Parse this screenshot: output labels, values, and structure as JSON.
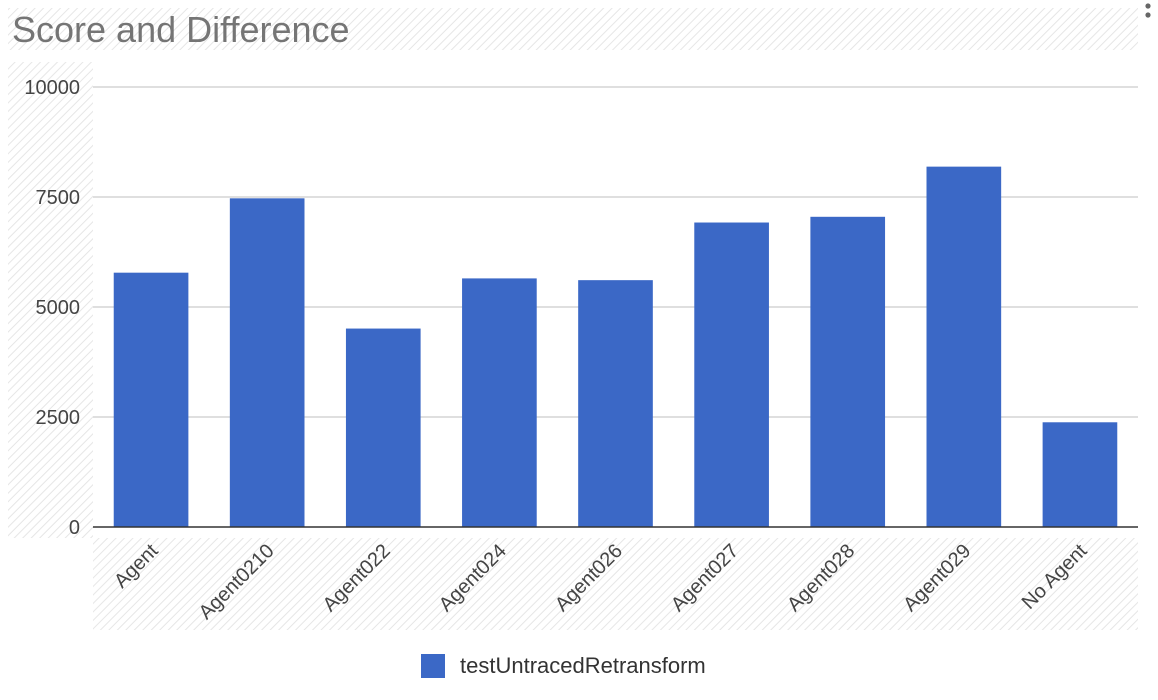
{
  "chart_data": {
    "type": "bar",
    "title": "Score and Difference",
    "categories": [
      "Agent",
      "Agent0210",
      "Agent022",
      "Agent024",
      "Agent026",
      "Agent027",
      "Agent028",
      "Agent029",
      "No Agent"
    ],
    "series": [
      {
        "name": "testUntracedRetransform",
        "color": "#3b68c6",
        "values": [
          5780,
          7470,
          4510,
          5650,
          5610,
          6920,
          7050,
          8190,
          2380
        ]
      }
    ],
    "ylim": [
      0,
      10000
    ],
    "yticks": [
      "0",
      "2500",
      "5000",
      "7500",
      "10000"
    ],
    "grid": true,
    "legend": "bottom-center"
  },
  "ui": {
    "menu_icon": "vertical-dots-icon"
  }
}
